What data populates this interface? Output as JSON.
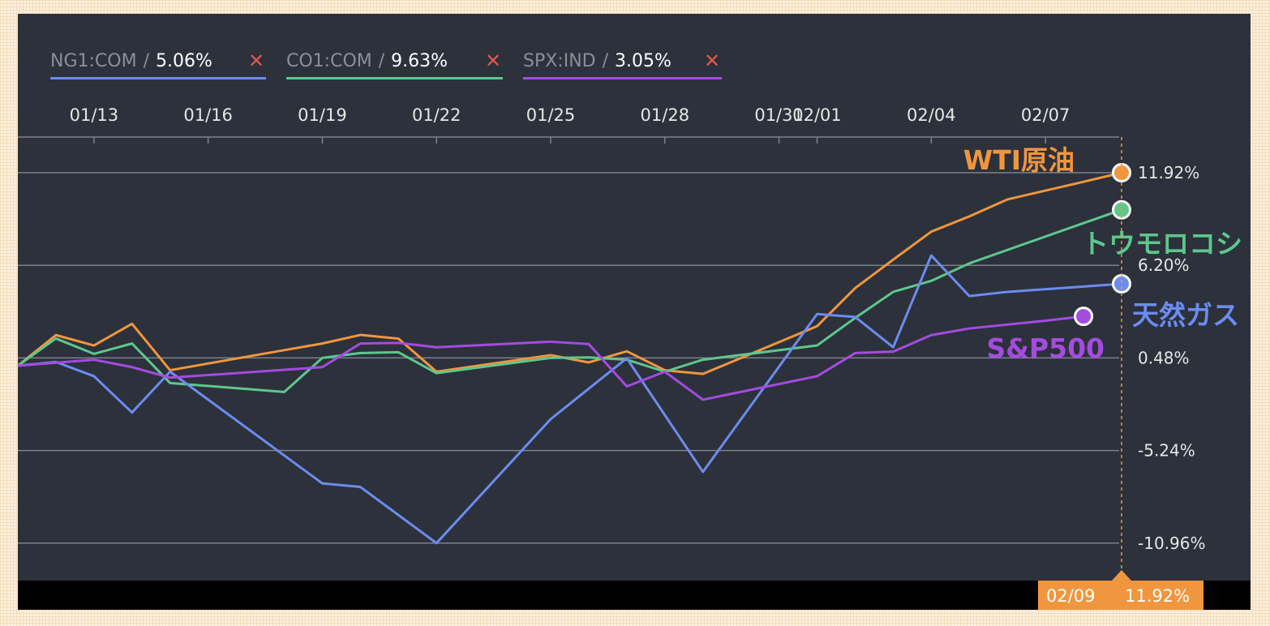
{
  "legend": [
    {
      "ticker": "NG1:COM",
      "sep": "/",
      "value": "5.06%",
      "close": "✕",
      "color": "#6b8cf0"
    },
    {
      "ticker": "CO1:COM",
      "sep": "/",
      "value": "9.63%",
      "close": "✕",
      "color": "#5dc78d"
    },
    {
      "ticker": "SPX:IND",
      "sep": "/",
      "value": "3.05%",
      "close": "✕",
      "color": "#a44be0"
    }
  ],
  "readout": {
    "date": "02/09",
    "value": "11.92%",
    "color": "#f0963e"
  },
  "chart_data": {
    "type": "line",
    "x_tick_labels": [
      "01/13",
      "01/16",
      "01/19",
      "01/22",
      "01/25",
      "01/28",
      "01/31",
      "02/01",
      "02/04",
      "02/07"
    ],
    "y_tick_labels": [
      "11.92%",
      "6.20%",
      "0.48%",
      "-5.24%",
      "-10.96%"
    ],
    "y_ticks": [
      11.92,
      6.2,
      0.48,
      -5.24,
      -10.96
    ],
    "grid": true,
    "series": [
      {
        "name": "WTI原油",
        "color": "#f0963e",
        "points": [
          [
            0,
            0.0
          ],
          [
            1,
            1.89
          ],
          [
            2,
            1.25
          ],
          [
            3,
            2.59
          ],
          [
            4,
            -0.28
          ],
          [
            7,
            0.96
          ],
          [
            8,
            1.37
          ],
          [
            9,
            1.9
          ],
          [
            10,
            1.67
          ],
          [
            11,
            -0.37
          ],
          [
            14,
            0.65
          ],
          [
            15,
            0.2
          ],
          [
            16,
            0.89
          ],
          [
            17,
            -0.28
          ],
          [
            18,
            -0.51
          ],
          [
            21,
            2.44
          ],
          [
            22,
            4.79
          ],
          [
            23,
            6.55
          ],
          [
            24,
            8.28
          ],
          [
            25,
            9.22
          ],
          [
            26,
            10.27
          ],
          [
            28,
            11.36
          ],
          [
            29,
            11.92
          ]
        ]
      },
      {
        "name": "トウモロコシ",
        "color": "#5dc78d",
        "points": [
          [
            0,
            0.0
          ],
          [
            1,
            1.68
          ],
          [
            2,
            0.73
          ],
          [
            3,
            1.37
          ],
          [
            4,
            -1.07
          ],
          [
            7,
            -1.62
          ],
          [
            8,
            0.48
          ],
          [
            9,
            0.78
          ],
          [
            10,
            0.83
          ],
          [
            11,
            -0.46
          ],
          [
            14,
            0.48
          ],
          [
            15,
            0.51
          ],
          [
            16,
            0.37
          ],
          [
            17,
            -0.37
          ],
          [
            18,
            0.37
          ],
          [
            21,
            1.25
          ],
          [
            22,
            2.95
          ],
          [
            23,
            4.56
          ],
          [
            24,
            5.24
          ],
          [
            25,
            6.32
          ],
          [
            27,
            7.98
          ],
          [
            29,
            9.63
          ]
        ]
      },
      {
        "name": "天然ガス",
        "color": "#6b8cf0",
        "points": [
          [
            0,
            0.0
          ],
          [
            1,
            0.23
          ],
          [
            2,
            -0.65
          ],
          [
            3,
            -2.89
          ],
          [
            4,
            -0.37
          ],
          [
            8,
            -7.27
          ],
          [
            9,
            -7.49
          ],
          [
            11,
            -10.96
          ],
          [
            14,
            -3.3
          ],
          [
            16,
            0.46
          ],
          [
            18,
            -6.56
          ],
          [
            21,
            3.19
          ],
          [
            22,
            3.01
          ],
          [
            23,
            1.14
          ],
          [
            24,
            6.81
          ],
          [
            25,
            4.3
          ],
          [
            26,
            4.56
          ],
          [
            28,
            4.89
          ],
          [
            29,
            5.06
          ]
        ]
      },
      {
        "name": "S&P500",
        "color": "#a44be0",
        "points": [
          [
            0,
            0.0
          ],
          [
            2,
            0.37
          ],
          [
            3,
            -0.09
          ],
          [
            4,
            -0.74
          ],
          [
            8,
            -0.09
          ],
          [
            9,
            1.37
          ],
          [
            10,
            1.41
          ],
          [
            11,
            1.14
          ],
          [
            14,
            1.48
          ],
          [
            15,
            1.34
          ],
          [
            16,
            -1.28
          ],
          [
            17,
            -0.37
          ],
          [
            18,
            -2.1
          ],
          [
            21,
            -0.65
          ],
          [
            22,
            0.78
          ],
          [
            23,
            0.87
          ],
          [
            24,
            1.89
          ],
          [
            25,
            2.3
          ],
          [
            27,
            2.78
          ],
          [
            28,
            3.05
          ]
        ]
      }
    ]
  }
}
